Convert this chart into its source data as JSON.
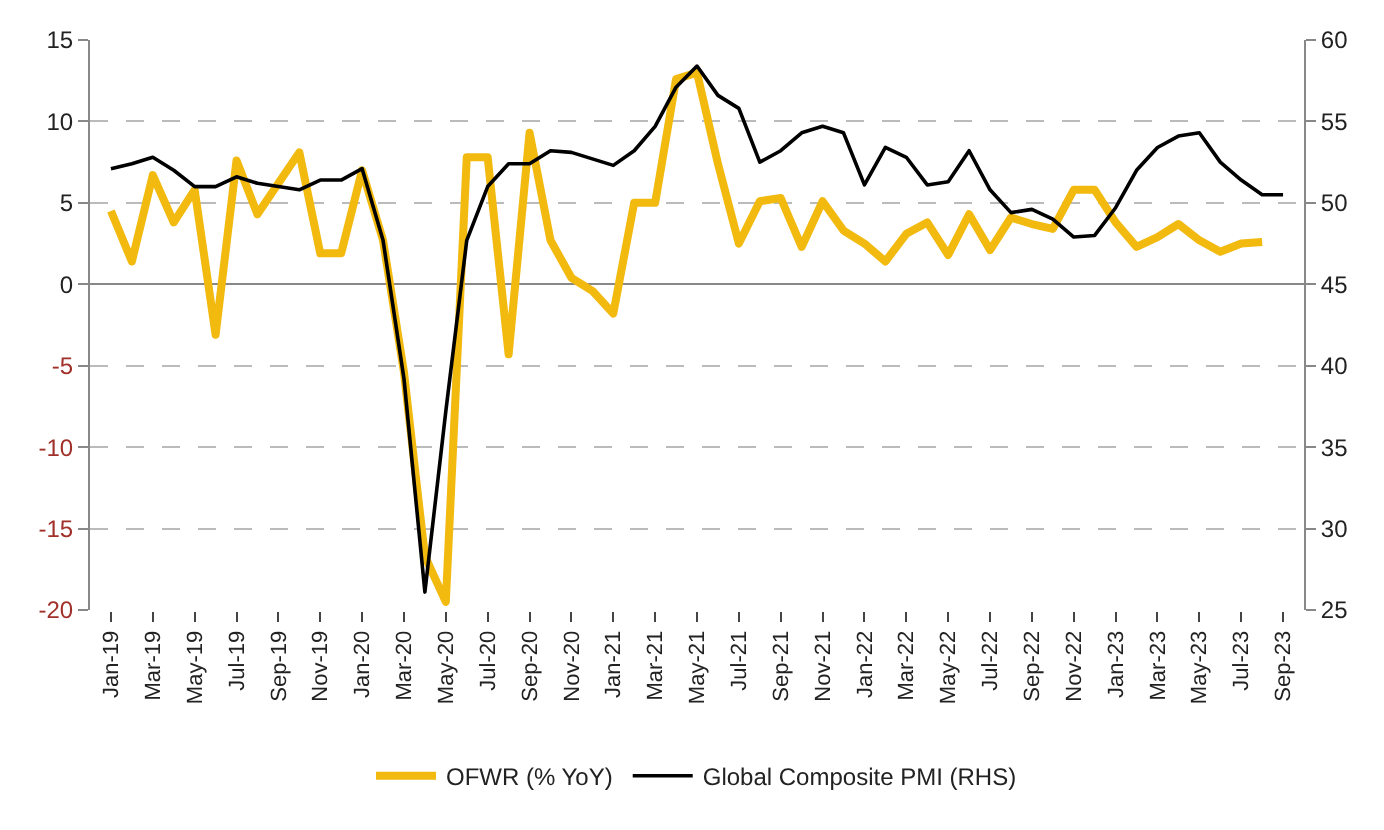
{
  "chart_data": {
    "type": "line",
    "categories": [
      "Jan-19",
      null,
      "Mar-19",
      null,
      "May-19",
      null,
      "Jul-19",
      null,
      "Sep-19",
      null,
      "Nov-19",
      null,
      "Jan-20",
      null,
      "Mar-20",
      null,
      "May-20",
      null,
      "Jul-20",
      null,
      "Sep-20",
      null,
      "Nov-20",
      null,
      "Jan-21",
      null,
      "Mar-21",
      null,
      "May-21",
      null,
      "Jul-21",
      null,
      "Sep-21",
      null,
      "Nov-21",
      null,
      "Jan-22",
      null,
      "Mar-22",
      null,
      "May-22",
      null,
      "Jul-22",
      null,
      "Sep-22",
      null,
      "Nov-22",
      null,
      "Jan-23",
      null,
      "Mar-23",
      null,
      "May-23",
      null,
      "Jul-23",
      null,
      "Sep-23"
    ],
    "series": [
      {
        "name": "OFWR (% YoY)",
        "color": "#f2b90f",
        "values": [
          4.5,
          1.4,
          6.7,
          3.8,
          5.8,
          -3.1,
          7.6,
          4.3,
          6.2,
          8.1,
          1.9,
          1.9,
          7.0,
          2.7,
          -5.4,
          -16.7,
          -19.5,
          7.8,
          7.8,
          -4.3,
          9.3,
          2.7,
          0.4,
          -0.4,
          -1.8,
          5.0,
          5.0,
          12.6,
          13.0,
          7.4,
          2.5,
          5.1,
          5.3,
          2.3,
          5.1,
          3.3,
          2.5,
          1.4,
          3.1,
          3.8,
          1.8,
          4.3,
          2.1,
          4.1,
          3.7,
          3.4,
          5.8,
          5.8,
          3.8,
          2.3,
          2.9,
          3.7,
          2.7,
          2.0,
          2.5,
          2.6,
          null
        ]
      },
      {
        "name": "Global Composite PMI (RHS)",
        "color": "#000000",
        "axis": "y2",
        "values": [
          52.1,
          52.4,
          52.8,
          52.0,
          51.0,
          51.0,
          51.6,
          51.2,
          51.0,
          50.8,
          51.4,
          51.4,
          52.1,
          47.7,
          39.2,
          26.1,
          37.2,
          47.7,
          51.0,
          52.4,
          52.4,
          53.2,
          53.1,
          52.7,
          52.3,
          53.2,
          54.7,
          57.1,
          58.4,
          56.6,
          55.8,
          52.5,
          53.2,
          54.3,
          54.7,
          54.3,
          51.1,
          53.4,
          52.8,
          51.1,
          51.3,
          53.2,
          50.8,
          49.4,
          49.6,
          49.0,
          47.9,
          48.0,
          49.7,
          52.0,
          53.4,
          54.1,
          54.3,
          52.5,
          51.4,
          50.5,
          50.5
        ]
      }
    ],
    "ylim": [
      -20,
      15
    ],
    "yticks": [
      -20,
      -15,
      -10,
      -5,
      0,
      5,
      10,
      15
    ],
    "y2lim": [
      25,
      60
    ],
    "y2ticks": [
      25,
      30,
      35,
      40,
      45,
      50,
      55,
      60
    ],
    "grid": "y",
    "legend": "bottom",
    "marker": "none",
    "line_style": "solid"
  }
}
